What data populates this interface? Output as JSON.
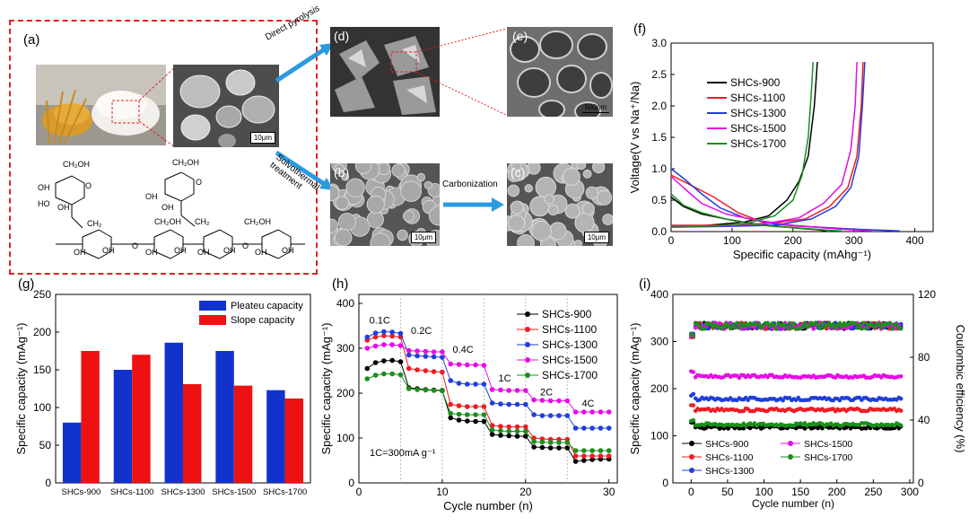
{
  "colors": {
    "black": "#000000",
    "red": "#ee1c24",
    "blue": "#1f3fdb",
    "magenta": "#e60ce6",
    "green": "#1a8f1a",
    "bar_blue": "#1133cc",
    "bar_red": "#ee1111",
    "arrow": "#2b9be0",
    "dash": "#e02020"
  },
  "panel_a": {
    "label": "(a)",
    "scale_label": "10μm",
    "structure_atoms": [
      "CH2OH",
      "OH",
      "O",
      "O",
      "OH",
      "OH",
      "O",
      "CH2",
      "CH2OH",
      "O",
      "OH",
      "O",
      "OH",
      "O",
      "CH2",
      "O",
      "CH2OH",
      "OH",
      "O",
      "O",
      "OH",
      "OH",
      "O",
      "OH",
      "O",
      "OH",
      "O",
      "OH",
      "O"
    ]
  },
  "arrows": {
    "pyrolysis": "Direct pyrolysis",
    "solvothermal": "Solvothermal treatment",
    "carbonization": "Carbonization"
  },
  "panel_d": {
    "label": "(d)"
  },
  "panel_e": {
    "label": "(e)",
    "scale_label": "500nm"
  },
  "panel_b": {
    "label": "(b)",
    "scale_label": "10μm"
  },
  "panel_c": {
    "label": "(c)",
    "scale_label": "10μm"
  },
  "panel_f": {
    "label": "(f)",
    "legend": [
      "SHCs-900",
      "SHCs-1100",
      "SHCs-1300",
      "SHCs-1500",
      "SHCs-1700"
    ],
    "chart_data": {
      "type": "line",
      "xlabel": "Specific capacity (mAhg⁻¹)",
      "ylabel": "Voltage(V vs Na⁺/Na)",
      "xlim": [
        0,
        430
      ],
      "ylim": [
        0,
        3.0
      ],
      "xticks": [
        0,
        100,
        200,
        300,
        400
      ],
      "yticks": [
        0.0,
        0.5,
        1.0,
        1.5,
        2.0,
        2.5,
        3.0
      ],
      "series": [
        {
          "name": "SHCs-900",
          "color": "#000000",
          "discharge": [
            [
              0,
              0.55
            ],
            [
              20,
              0.4
            ],
            [
              50,
              0.28
            ],
            [
              90,
              0.2
            ],
            [
              130,
              0.13
            ],
            [
              160,
              0.1
            ],
            [
              200,
              0.06
            ],
            [
              240,
              0.03
            ],
            [
              255,
              0.01
            ]
          ],
          "charge": [
            [
              0,
              0.08
            ],
            [
              60,
              0.1
            ],
            [
              120,
              0.15
            ],
            [
              160,
              0.25
            ],
            [
              190,
              0.5
            ],
            [
              210,
              0.8
            ],
            [
              225,
              1.2
            ],
            [
              235,
              2.0
            ],
            [
              240,
              2.7
            ]
          ]
        },
        {
          "name": "SHCs-1100",
          "color": "#ee1c24",
          "discharge": [
            [
              0,
              0.9
            ],
            [
              30,
              0.75
            ],
            [
              70,
              0.55
            ],
            [
              110,
              0.3
            ],
            [
              150,
              0.15
            ],
            [
              200,
              0.09
            ],
            [
              260,
              0.06
            ],
            [
              310,
              0.03
            ],
            [
              320,
              0.01
            ]
          ],
          "charge": [
            [
              0,
              0.1
            ],
            [
              80,
              0.1
            ],
            [
              160,
              0.13
            ],
            [
              220,
              0.2
            ],
            [
              260,
              0.4
            ],
            [
              290,
              0.7
            ],
            [
              305,
              1.2
            ],
            [
              312,
              2.0
            ],
            [
              315,
              2.7
            ]
          ]
        },
        {
          "name": "SHCs-1300",
          "color": "#1f3fdb",
          "discharge": [
            [
              0,
              1.0
            ],
            [
              20,
              0.85
            ],
            [
              50,
              0.6
            ],
            [
              80,
              0.38
            ],
            [
              120,
              0.22
            ],
            [
              170,
              0.12
            ],
            [
              240,
              0.07
            ],
            [
              300,
              0.04
            ],
            [
              375,
              0.01
            ]
          ],
          "charge": [
            [
              0,
              0.07
            ],
            [
              80,
              0.08
            ],
            [
              170,
              0.1
            ],
            [
              230,
              0.2
            ],
            [
              270,
              0.4
            ],
            [
              295,
              0.7
            ],
            [
              308,
              1.2
            ],
            [
              314,
              2.0
            ],
            [
              318,
              2.7
            ]
          ]
        },
        {
          "name": "SHCs-1500",
          "color": "#e60ce6",
          "discharge": [
            [
              0,
              0.88
            ],
            [
              20,
              0.7
            ],
            [
              50,
              0.45
            ],
            [
              90,
              0.28
            ],
            [
              140,
              0.18
            ],
            [
              200,
              0.1
            ],
            [
              260,
              0.05
            ],
            [
              310,
              0.02
            ],
            [
              330,
              0.01
            ]
          ],
          "charge": [
            [
              0,
              0.08
            ],
            [
              80,
              0.09
            ],
            [
              150,
              0.12
            ],
            [
              210,
              0.22
            ],
            [
              250,
              0.45
            ],
            [
              280,
              0.75
            ],
            [
              295,
              1.3
            ],
            [
              302,
              2.0
            ],
            [
              305,
              2.7
            ]
          ]
        },
        {
          "name": "SHCs-1700",
          "color": "#1a8f1a",
          "discharge": [
            [
              0,
              0.6
            ],
            [
              20,
              0.42
            ],
            [
              50,
              0.3
            ],
            [
              90,
              0.2
            ],
            [
              130,
              0.12
            ],
            [
              170,
              0.08
            ],
            [
              220,
              0.05
            ],
            [
              260,
              0.02
            ],
            [
              280,
              0.01
            ]
          ],
          "charge": [
            [
              0,
              0.07
            ],
            [
              60,
              0.08
            ],
            [
              120,
              0.12
            ],
            [
              170,
              0.25
            ],
            [
              200,
              0.5
            ],
            [
              215,
              0.9
            ],
            [
              225,
              1.5
            ],
            [
              230,
              2.2
            ],
            [
              233,
              2.7
            ]
          ]
        }
      ]
    }
  },
  "panel_g": {
    "label": "(g)",
    "chart_data": {
      "type": "bar",
      "categories": [
        "SHCs-900",
        "SHCs-1100",
        "SHCs-1300",
        "SHCs-1500",
        "SHCs-1700"
      ],
      "series": [
        {
          "name": "Pleateu capacity",
          "color": "#1133cc",
          "values": [
            80,
            150,
            186,
            175,
            123
          ]
        },
        {
          "name": "Slope capacity",
          "color": "#ee1111",
          "values": [
            175,
            170,
            131,
            129,
            112
          ]
        }
      ],
      "ylabel": "Specific capacity (mAg⁻¹)",
      "ylim": [
        0,
        250
      ],
      "yticks": [
        0,
        50,
        100,
        150,
        200,
        250
      ]
    }
  },
  "panel_h": {
    "label": "(h)",
    "rate_labels": [
      {
        "text": "0.1C",
        "x": 2.5,
        "y": 355
      },
      {
        "text": "0.2C",
        "x": 7.5,
        "y": 332
      },
      {
        "text": "0.4C",
        "x": 12.5,
        "y": 290
      },
      {
        "text": "1C",
        "x": 17.5,
        "y": 226
      },
      {
        "text": "2C",
        "x": 22.5,
        "y": 195
      },
      {
        "text": "4C",
        "x": 27.5,
        "y": 170
      }
    ],
    "note": "1C=300mA g⁻¹",
    "chart_data": {
      "type": "line",
      "xlabel": "Cycle number (n)",
      "ylabel": "Specific capacity (mAg⁻¹)",
      "xlim": [
        0,
        31
      ],
      "ylim": [
        0,
        420
      ],
      "xticks": [
        0,
        10,
        20,
        30
      ],
      "yticks": [
        0,
        100,
        200,
        300,
        400
      ],
      "series": [
        {
          "name": "SHCs-900",
          "color": "#000000",
          "values": [
            255,
            268,
            272,
            273,
            270,
            212,
            210,
            208,
            207,
            206,
            145,
            140,
            138,
            137,
            137,
            108,
            106,
            105,
            104,
            104,
            80,
            79,
            78,
            78,
            78,
            48,
            50,
            52,
            53,
            53
          ]
        },
        {
          "name": "SHCs-1100",
          "color": "#ee1c24",
          "values": [
            318,
            325,
            328,
            327,
            325,
            255,
            252,
            250,
            248,
            247,
            175,
            172,
            170,
            170,
            170,
            128,
            126,
            125,
            125,
            125,
            100,
            98,
            97,
            97,
            97,
            60,
            60,
            60,
            60,
            60
          ]
        },
        {
          "name": "SHCs-1300",
          "color": "#1f3fdb",
          "values": [
            325,
            334,
            337,
            336,
            333,
            285,
            283,
            282,
            281,
            280,
            228,
            222,
            220,
            220,
            220,
            178,
            176,
            175,
            175,
            175,
            152,
            150,
            150,
            150,
            150,
            122,
            122,
            122,
            122,
            122
          ]
        },
        {
          "name": "SHCs-1500",
          "color": "#e60ce6",
          "values": [
            300,
            305,
            308,
            308,
            306,
            295,
            294,
            293,
            292,
            292,
            265,
            264,
            263,
            263,
            262,
            208,
            207,
            206,
            206,
            206,
            185,
            184,
            183,
            183,
            183,
            158,
            158,
            158,
            158,
            158
          ]
        },
        {
          "name": "SHCs-1700",
          "color": "#1a8f1a",
          "values": [
            232,
            240,
            243,
            243,
            241,
            210,
            208,
            207,
            206,
            205,
            155,
            153,
            152,
            152,
            152,
            118,
            116,
            115,
            115,
            115,
            92,
            91,
            90,
            90,
            90,
            72,
            72,
            72,
            72,
            72
          ]
        }
      ]
    }
  },
  "panel_i": {
    "label": "(i)",
    "legend": [
      "SHCs-900",
      "SHCs-1500",
      "SHCs-1100",
      "SHCs-1700",
      "SHCs-1300"
    ],
    "chart_data": {
      "type": "scatter",
      "xlabel": "Cycle number (n)",
      "ylabel": "Specific capacity (mAg⁻¹)",
      "y2label": "Coulombic efficiency (%)",
      "xlim": [
        -25,
        305
      ],
      "ylim": [
        0,
        400
      ],
      "y2lim": [
        0,
        120
      ],
      "xticks": [
        0,
        50,
        100,
        150,
        200,
        250,
        300
      ],
      "yticks": [
        0,
        100,
        200,
        300,
        400
      ],
      "y2ticks": [
        0,
        40,
        80,
        120
      ],
      "capacity_levels": [
        {
          "name": "SHCs-900",
          "color": "#000000",
          "value": 118
        },
        {
          "name": "SHCs-1100",
          "color": "#ee1c24",
          "value": 155
        },
        {
          "name": "SHCs-1300",
          "color": "#1f3fdb",
          "value": 178
        },
        {
          "name": "SHCs-1500",
          "color": "#e60ce6",
          "value": 226
        },
        {
          "name": "SHCs-1700",
          "color": "#1a8f1a",
          "value": 124
        }
      ],
      "coulombic_efficiency_percent": 100
    }
  }
}
